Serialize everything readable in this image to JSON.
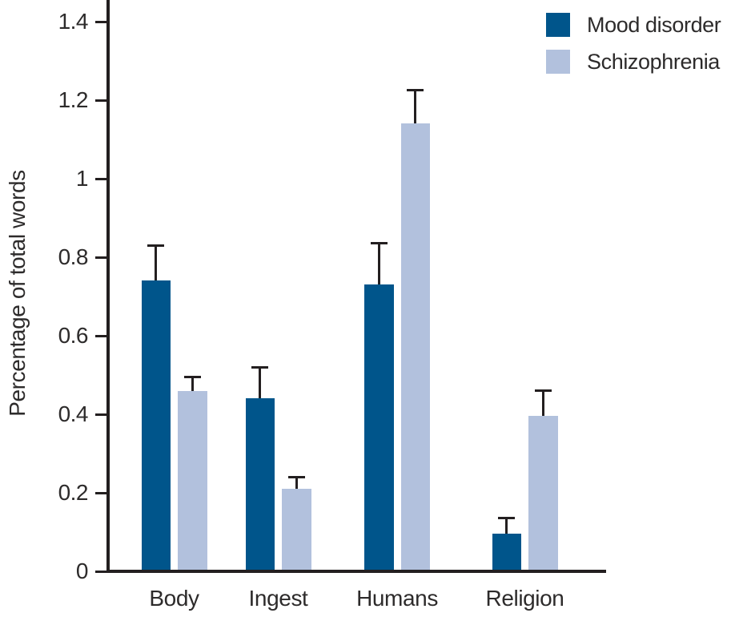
{
  "chart_data": {
    "type": "bar",
    "title": "",
    "ylabel": "Percentage of total words",
    "xlabel": "",
    "categories": [
      "Body",
      "Ingest",
      "Humans",
      "Religion"
    ],
    "series": [
      {
        "name": "Mood disorder",
        "color": "#00558b",
        "values": [
          0.74,
          0.44,
          0.73,
          0.095
        ],
        "error_plus": [
          0.09,
          0.08,
          0.105,
          0.04
        ]
      },
      {
        "name": "Schizophrenia",
        "color": "#b2c1dd",
        "values": [
          0.46,
          0.21,
          1.14,
          0.395
        ],
        "error_plus": [
          0.035,
          0.03,
          0.085,
          0.065
        ]
      }
    ],
    "y_axis": {
      "min": 0,
      "max": 1.4,
      "tick_step": 0.2,
      "tick_labels": [
        "0",
        "0.2",
        "0.4",
        "0.6",
        "0.8",
        "1",
        "1.2",
        "1.4"
      ]
    },
    "legend": {
      "position": "top-right"
    },
    "grid": false,
    "error_bars": true,
    "axis_color": "#231f20",
    "text_color": "#2d2b2b"
  }
}
